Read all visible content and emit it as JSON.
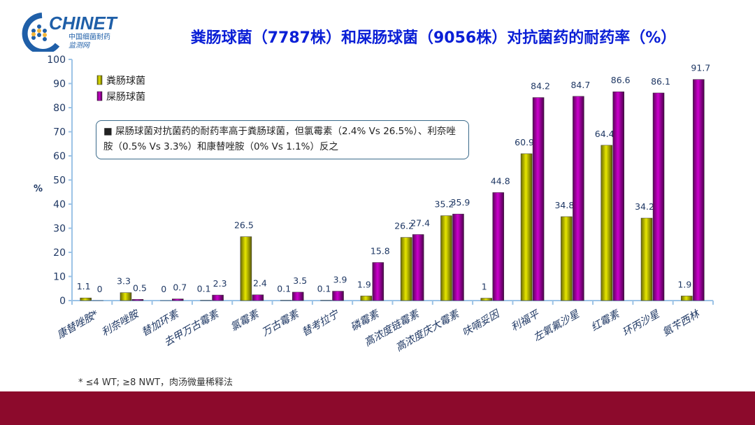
{
  "logo": {
    "text": "CHINET",
    "sub1": "中国细菌耐药",
    "sub2": "监测网"
  },
  "colors": {
    "series1": "#e6e600",
    "series2": "#cc00cc",
    "axis": "#9cc3e6",
    "band": "#8c0a2c"
  },
  "note": "■  屎肠球菌对抗菌药的耐药率高于粪肠球菌，但氯霉素（2.4% Vs 26.5%）、利奈唑胺（0.5% Vs 3.3%）和康替唑胺（0% Vs 1.1%）反之",
  "footnote": "* ≤4 WT; ≥8 NWT，肉汤微量稀释法",
  "chart_data": {
    "type": "bar",
    "title": "粪肠球菌（7787株）和屎肠球菌（9056株）对抗菌药的耐药率（%）",
    "ylabel": "%",
    "xlabel": "",
    "ylim": [
      0,
      100
    ],
    "yticks": [
      0,
      10,
      20,
      30,
      40,
      50,
      60,
      70,
      80,
      90,
      100
    ],
    "legend": "top-left",
    "categories": [
      "康替唑胺*",
      "利奈唑胺",
      "替加环素",
      "去甲万古霉素",
      "氯霉素",
      "万古霉素",
      "替考拉宁",
      "磷霉素",
      "高浓度链霉素",
      "高浓度庆大霉素",
      "呋喃妥因",
      "利福平",
      "左氧氟沙星",
      "红霉素",
      "环丙沙星",
      "氨苄西林"
    ],
    "series": [
      {
        "name": "粪肠球菌",
        "values": [
          1.1,
          3.3,
          0,
          0.1,
          26.5,
          0.1,
          0.1,
          1.9,
          26.2,
          35.2,
          1,
          60.9,
          34.8,
          64.4,
          34.2,
          1.9
        ]
      },
      {
        "name": "屎肠球菌",
        "values": [
          0,
          0.5,
          0.7,
          2.3,
          2.4,
          3.5,
          3.9,
          15.8,
          27.4,
          35.9,
          44.8,
          84.2,
          84.7,
          86.6,
          86.1,
          91.7
        ]
      }
    ]
  }
}
